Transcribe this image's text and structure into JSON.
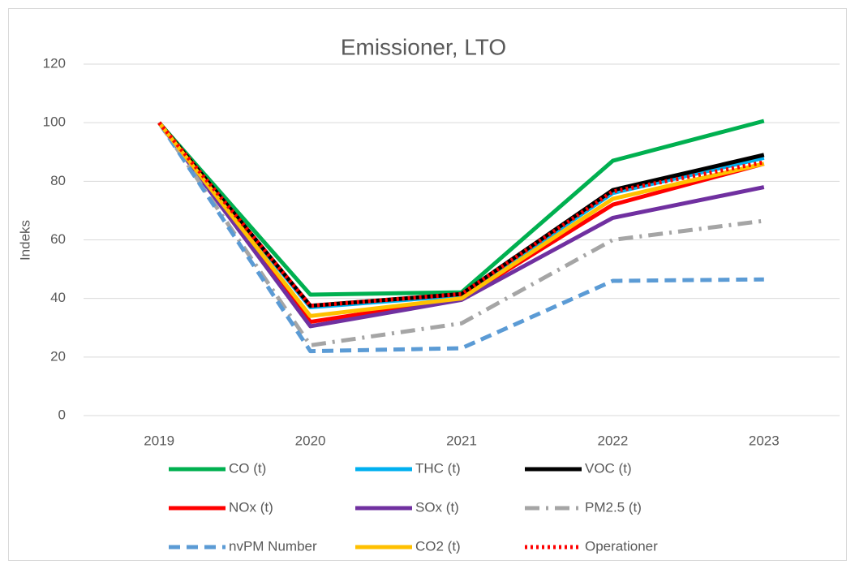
{
  "chart_data": {
    "type": "line",
    "title": "Emissioner, LTO",
    "y_label": "Indeks",
    "categories": [
      "2019",
      "2020",
      "2021",
      "2022",
      "2023"
    ],
    "ylim": [
      0,
      120
    ],
    "yticks": [
      0,
      20,
      40,
      60,
      80,
      100,
      120
    ],
    "grid": true,
    "series": [
      {
        "name": "CO (t)",
        "color": "#00b050",
        "dash": "solid",
        "values": [
          100,
          41.3,
          42.1,
          87,
          100.6
        ]
      },
      {
        "name": "THC (t)",
        "color": "#00b0f0",
        "dash": "solid",
        "values": [
          100,
          37,
          41,
          76,
          88
        ]
      },
      {
        "name": "VOC (t)",
        "color": "#000000",
        "dash": "solid",
        "values": [
          100,
          37.5,
          41.5,
          77,
          89
        ]
      },
      {
        "name": "NOx (t)",
        "color": "#ff0000",
        "dash": "solid",
        "values": [
          100,
          32,
          40,
          72,
          86
        ]
      },
      {
        "name": "SOx (t)",
        "color": "#7030a0",
        "dash": "solid",
        "values": [
          100,
          30.5,
          39.5,
          67.5,
          78
        ]
      },
      {
        "name": "PM2.5 (t)",
        "color": "#a5a5a5",
        "dash": "dashdot",
        "values": [
          100,
          24,
          31.5,
          60,
          66.5
        ]
      },
      {
        "name": "nvPM Number",
        "color": "#5b9bd5",
        "dash": "dash",
        "values": [
          100,
          22,
          23,
          46,
          46.5
        ]
      },
      {
        "name": "CO2 (t)",
        "color": "#ffc000",
        "dash": "solid",
        "values": [
          100,
          34,
          40,
          74,
          86
        ]
      },
      {
        "name": "Operationer",
        "color": "#ff0000",
        "dash": "dot",
        "values": [
          100,
          37.5,
          41.5,
          76.5,
          86.5
        ]
      }
    ]
  }
}
